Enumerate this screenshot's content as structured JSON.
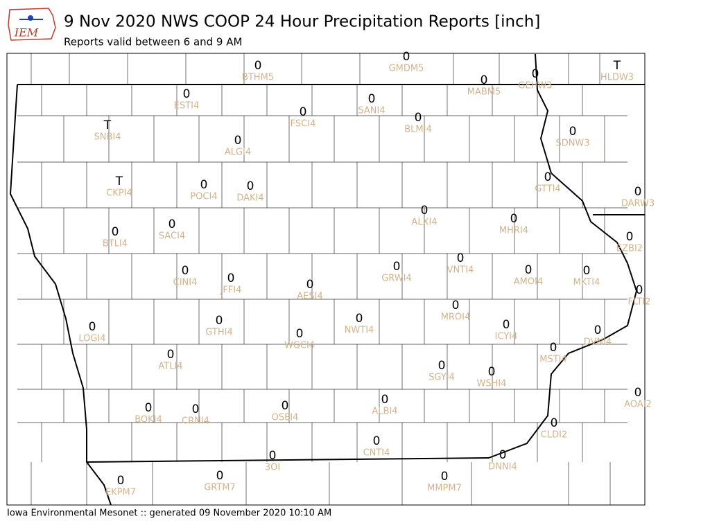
{
  "header": {
    "logo": "IEM",
    "title": "9 Nov 2020 NWS COOP 24 Hour Precipitation Reports [inch]",
    "subtitle": "Reports valid between 6 and 9 AM"
  },
  "stations": [
    {
      "id": "BTHM5",
      "value": 0
    },
    {
      "id": "GMDM5",
      "value": 0
    },
    {
      "id": "HLDW3",
      "value": "T"
    },
    {
      "id": "MABM5",
      "value": 0
    },
    {
      "id": "GEHW3",
      "value": 0
    },
    {
      "id": "ESTI4",
      "value": 0
    },
    {
      "id": "SANI4",
      "value": 0
    },
    {
      "id": "FSCI4",
      "value": 0
    },
    {
      "id": "BLMI4",
      "value": 0
    },
    {
      "id": "SNBI4",
      "value": "T"
    },
    {
      "id": "SDNW3",
      "value": 0
    },
    {
      "id": "ALGI4",
      "value": 0
    },
    {
      "id": "GTTI4",
      "value": 0
    },
    {
      "id": "CKPI4",
      "value": "T"
    },
    {
      "id": "POCI4",
      "value": 0
    },
    {
      "id": "DAKI4",
      "value": 0
    },
    {
      "id": "DARW3",
      "value": 0
    },
    {
      "id": "ALXI4",
      "value": 0
    },
    {
      "id": "MHRI4",
      "value": 0
    },
    {
      "id": "SACI4",
      "value": 0
    },
    {
      "id": "BTLI4",
      "value": 0
    },
    {
      "id": "EZBI2",
      "value": 0
    },
    {
      "id": "GRWI4",
      "value": 0
    },
    {
      "id": "VNTI4",
      "value": 0
    },
    {
      "id": "AMOI4",
      "value": 0
    },
    {
      "id": "MKTI4",
      "value": 0
    },
    {
      "id": "CINI4",
      "value": 0
    },
    {
      "id": "JFFI4",
      "value": 0
    },
    {
      "id": "AESI4",
      "value": 0
    },
    {
      "id": "FLTI2",
      "value": 0
    },
    {
      "id": "MROI4",
      "value": 0
    },
    {
      "id": "NWTI4",
      "value": 0
    },
    {
      "id": "GTHI4",
      "value": 0
    },
    {
      "id": "ICYI4",
      "value": 0
    },
    {
      "id": "LOGI4",
      "value": 0
    },
    {
      "id": "DVNI4",
      "value": 0
    },
    {
      "id": "WGCI4",
      "value": 0
    },
    {
      "id": "MSTI4",
      "value": 0
    },
    {
      "id": "ATLI4",
      "value": 0
    },
    {
      "id": "SGYI4",
      "value": 0
    },
    {
      "id": "WSHI4",
      "value": 0
    },
    {
      "id": "AOAI2",
      "value": 0
    },
    {
      "id": "BOKI4",
      "value": 0
    },
    {
      "id": "CRNI4",
      "value": 0
    },
    {
      "id": "OSEI4",
      "value": 0
    },
    {
      "id": "ALBI4",
      "value": 0
    },
    {
      "id": "CLDI2",
      "value": 0
    },
    {
      "id": "CNTI4",
      "value": 0
    },
    {
      "id": "3OI",
      "value": 0
    },
    {
      "id": "DNNI4",
      "value": 0
    },
    {
      "id": "EKPM7",
      "value": 0
    },
    {
      "id": "GRTM7",
      "value": 0
    },
    {
      "id": "MMPM7",
      "value": 0
    }
  ],
  "footer": "Iowa Environmental Mesonet :: generated 09 November 2020 10:10 AM"
}
